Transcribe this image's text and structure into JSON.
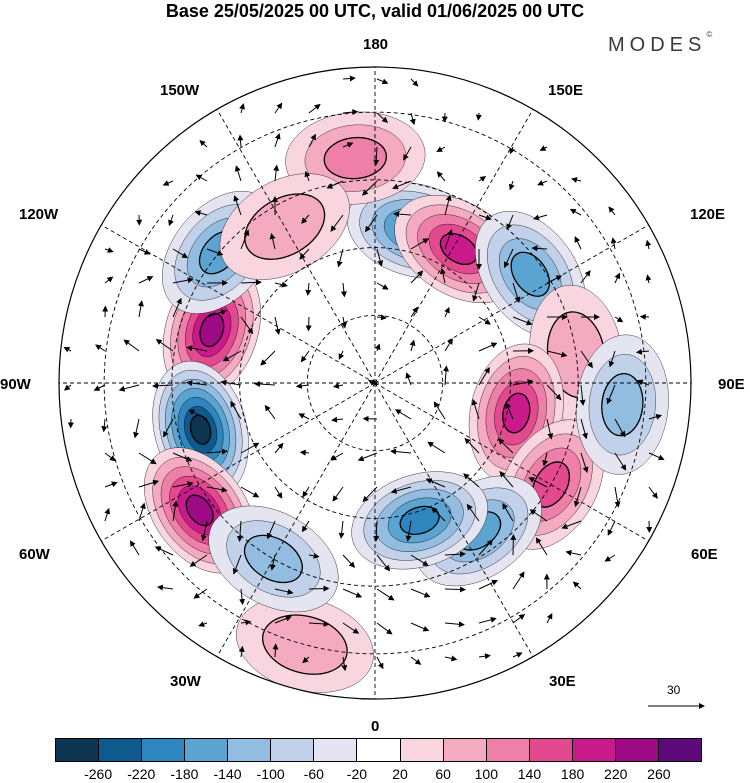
{
  "title": "Base 25/05/2025 00 UTC, valid 01/06/2025 00 UTC",
  "brand": "MODES",
  "brand_mark": "©",
  "longitude_labels": {
    "lon_180": "180",
    "lon_150w": "150W",
    "lon_150e": "150E",
    "lon_120w": "120W",
    "lon_120e": "120E",
    "lon_90w": "90W",
    "lon_90e": "90E",
    "lon_60w": "60W",
    "lon_60e": "60E",
    "lon_30w": "30W",
    "lon_30e": "30E",
    "lon_0": "0"
  },
  "vector_scale": {
    "value": "30"
  },
  "colorbar": {
    "colors": [
      "#0d3450",
      "#0f5a8c",
      "#2f86bf",
      "#5ba3d0",
      "#92bde0",
      "#c2d1ea",
      "#e5e5f2",
      "#ffffff",
      "#f9d6df",
      "#f4aac0",
      "#ee7fa8",
      "#e2498f",
      "#c9198a",
      "#9d0a83",
      "#5e0a7a"
    ],
    "tick_labels": [
      "-260",
      "-220",
      "-180",
      "-140",
      "-100",
      "-60",
      "-20",
      "20",
      "60",
      "100",
      "140",
      "180",
      "220",
      "260"
    ]
  },
  "anomaly_field": {
    "centers": [
      {
        "lon": -108,
        "lat": 52,
        "value": 240
      },
      {
        "lon": -75,
        "lat": 50,
        "value": -260
      },
      {
        "lon": -54,
        "lat": 42,
        "value": 220
      },
      {
        "lon": 165,
        "lat": 55,
        "value": -200
      },
      {
        "lon": 148,
        "lat": 55,
        "value": 200
      },
      {
        "lon": 125,
        "lat": 48,
        "value": -140
      },
      {
        "lon": 98,
        "lat": 45,
        "value": 60
      },
      {
        "lon": 78,
        "lat": 58,
        "value": 180
      },
      {
        "lon": 60,
        "lat": 45,
        "value": 160
      },
      {
        "lon": 35,
        "lat": 50,
        "value": -160
      },
      {
        "lon": 18,
        "lat": 58,
        "value": -180
      },
      {
        "lon": 85,
        "lat": 35,
        "value": -120
      },
      {
        "lon": -130,
        "lat": 45,
        "value": -140
      },
      {
        "lon": -175,
        "lat": 40,
        "value": 100
      },
      {
        "lon": -15,
        "lat": 30,
        "value": 80
      },
      {
        "lon": -30,
        "lat": 45,
        "value": -100
      },
      {
        "lon": -150,
        "lat": 50,
        "value": 80
      }
    ]
  }
}
